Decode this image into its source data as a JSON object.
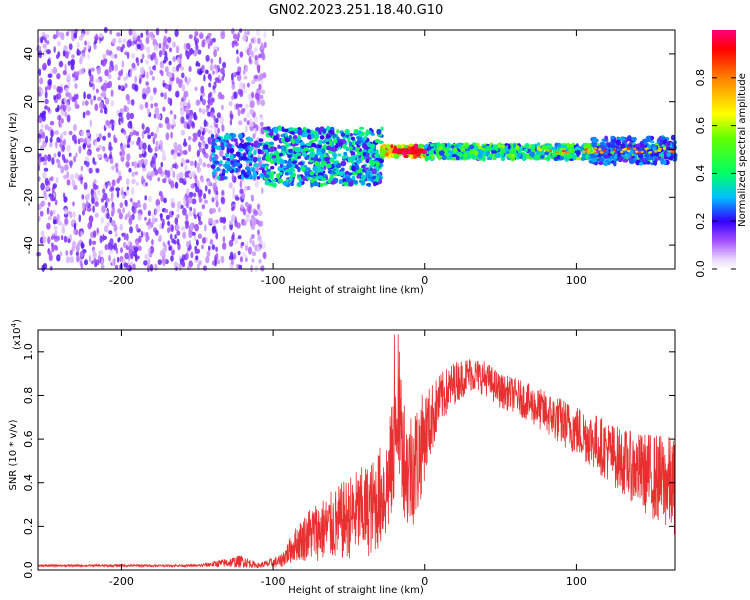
{
  "title": "GN02.2023.251.18.40.G10",
  "chart_data": [
    {
      "type": "heatmap",
      "title": "",
      "xlabel": "Height of straight line (km)",
      "ylabel": "Frequency (Hz)",
      "xlim": [
        -255,
        165
      ],
      "ylim": [
        -50,
        50
      ],
      "xticks": [
        -200,
        -100,
        0,
        100
      ],
      "yticks": [
        -40,
        -20,
        0,
        20,
        40
      ],
      "colorbar": {
        "label": "Normalized spectral amplitude",
        "range": [
          0,
          1
        ],
        "ticks": [
          0.0,
          0.2,
          0.4,
          0.6,
          0.8
        ],
        "tick_labels": [
          "0.0",
          "0.2",
          "0.4",
          "0.6",
          "0.8"
        ],
        "colormap": "rainbow (white-violet-blue-cyan-green-yellow-orange-red-magenta)"
      },
      "regions": [
        {
          "x": [
            -255,
            -105
          ],
          "freq": [
            -50,
            50
          ],
          "amplitude": "0.05-0.2",
          "note": "broadband noise"
        },
        {
          "x": [
            -140,
            -110
          ],
          "freq": [
            -10,
            5
          ],
          "amplitude": "0.2-0.4"
        },
        {
          "x": [
            -105,
            -25
          ],
          "freq": [
            -15,
            8
          ],
          "amplitude": "0.2-0.45"
        },
        {
          "x": [
            -25,
            0
          ],
          "freq": [
            -3,
            1
          ],
          "amplitude": "0.8-1.0"
        },
        {
          "x": [
            0,
            165
          ],
          "freq": [
            -4,
            2
          ],
          "amplitude": "0.4-0.7"
        }
      ]
    },
    {
      "type": "line",
      "title": "",
      "xlabel": "Height of straight line (km)",
      "ylabel": "SNR (10 * v/v)",
      "yscale_label": "(x10",
      "yscale_exp": "4",
      "yscale_close": ")",
      "xlim": [
        -255,
        165
      ],
      "ylim": [
        0,
        1.1
      ],
      "xticks": [
        -200,
        -100,
        0,
        100
      ],
      "yticks": [
        0.0,
        0.2,
        0.4,
        0.6,
        0.8,
        1.0
      ],
      "ytick_labels": [
        "0.0",
        "0.2",
        "0.4",
        "0.6",
        "0.8",
        "1.0"
      ],
      "color": "#e83030",
      "series": [
        {
          "x": [
            -255,
            -200,
            -150,
            -120,
            -110,
            -95,
            -85,
            -75,
            -65,
            -55,
            -45,
            -35,
            -25,
            -20,
            -17,
            -12,
            -5,
            0,
            10,
            20,
            30,
            40,
            50,
            60,
            70,
            80,
            90,
            100,
            110,
            120,
            130,
            140,
            150,
            160,
            165
          ],
          "y": [
            0.02,
            0.02,
            0.02,
            0.04,
            0.02,
            0.04,
            0.12,
            0.17,
            0.19,
            0.22,
            0.26,
            0.28,
            0.38,
            0.55,
            0.72,
            0.45,
            0.5,
            0.62,
            0.78,
            0.86,
            0.9,
            0.88,
            0.82,
            0.8,
            0.76,
            0.72,
            0.68,
            0.64,
            0.6,
            0.55,
            0.5,
            0.46,
            0.43,
            0.4,
            0.38
          ],
          "noise_amplitude": [
            0.005,
            0.005,
            0.005,
            0.03,
            0.01,
            0.03,
            0.08,
            0.13,
            0.15,
            0.18,
            0.2,
            0.22,
            0.25,
            0.28,
            0.3,
            0.28,
            0.28,
            0.2,
            0.12,
            0.1,
            0.08,
            0.08,
            0.08,
            0.08,
            0.09,
            0.1,
            0.11,
            0.12,
            0.13,
            0.14,
            0.15,
            0.17,
            0.2,
            0.22,
            0.22
          ]
        }
      ]
    }
  ]
}
